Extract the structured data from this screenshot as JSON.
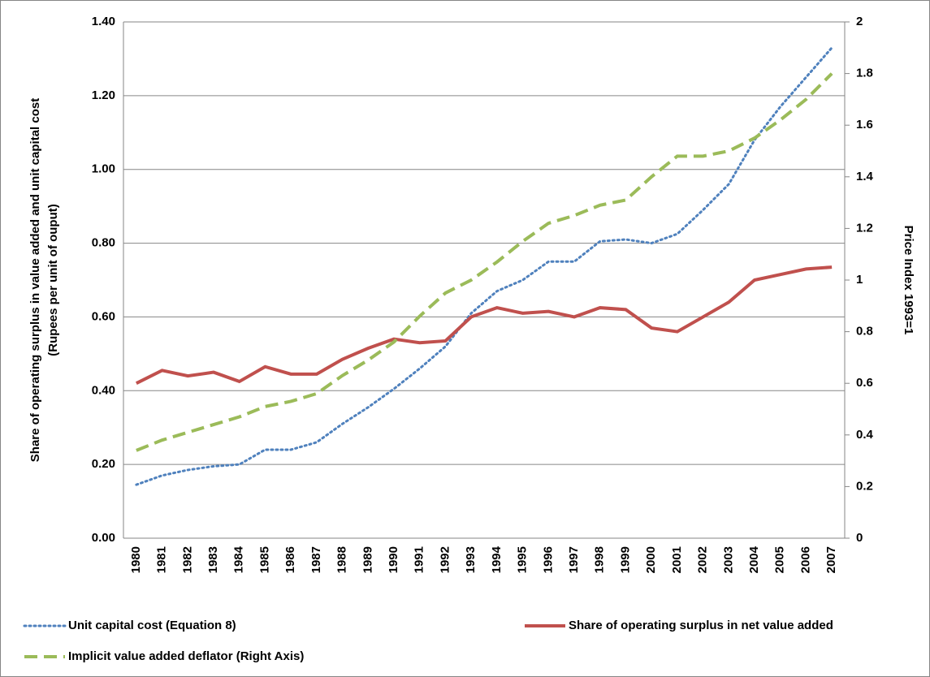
{
  "chart_data": {
    "type": "line",
    "y_label": "Share of operating surplus in value added and unit capital cost",
    "y_label2": "(Rupees per unit of ouput)",
    "y2_label": "Price Index 1993=1",
    "categories": [
      "1980",
      "1981",
      "1982",
      "1983",
      "1984",
      "1985",
      "1986",
      "1987",
      "1988",
      "1989",
      "1990",
      "1991",
      "1992",
      "1993",
      "1994",
      "1995",
      "1996",
      "1997",
      "1998",
      "1999",
      "2000",
      "2001",
      "2002",
      "2003",
      "2004",
      "2005",
      "2006",
      "2007"
    ],
    "ylim": [
      0,
      1.4
    ],
    "yticks": [
      {
        "value": 0,
        "label": "0.00"
      },
      {
        "value": 0.2,
        "label": "0.20"
      },
      {
        "value": 0.4,
        "label": "0.40"
      },
      {
        "value": 0.6,
        "label": "0.60"
      },
      {
        "value": 0.8,
        "label": "0.80"
      },
      {
        "value": 1,
        "label": "1.00"
      },
      {
        "value": 1.2,
        "label": "1.20"
      },
      {
        "value": 1.4,
        "label": "1.40"
      }
    ],
    "y2lim": [
      0,
      2
    ],
    "y2ticks": [
      0,
      0.2,
      0.4,
      0.6,
      0.8,
      1,
      1.2,
      1.4,
      1.6,
      1.8,
      2
    ],
    "grid": true,
    "series": [
      {
        "name": "Unit capital cost (Equation 8)",
        "color": "#4f81bd",
        "dash": "dotted",
        "values": [
          0.145,
          0.17,
          0.185,
          0.195,
          0.2,
          0.24,
          0.24,
          0.26,
          0.31,
          0.355,
          0.405,
          0.46,
          0.52,
          0.61,
          0.67,
          0.7,
          0.75,
          0.75,
          0.805,
          0.81,
          0.8,
          0.825,
          0.89,
          0.96,
          1.08,
          1.17,
          1.25,
          1.33
        ]
      },
      {
        "name": "Share of operating surplus in net value added",
        "color": "#c0504d",
        "dash": "solid",
        "values": [
          0.42,
          0.455,
          0.44,
          0.45,
          0.425,
          0.465,
          0.445,
          0.445,
          0.485,
          0.515,
          0.54,
          0.53,
          0.535,
          0.6,
          0.625,
          0.61,
          0.615,
          0.6,
          0.625,
          0.62,
          0.57,
          0.56,
          0.6,
          0.64,
          0.7,
          0.715,
          0.73,
          0.735
        ]
      },
      {
        "name": "Implicit value added deflator (Right Axis)",
        "color": "#9bbb59",
        "dash": "dashed",
        "axis": "y2",
        "values": [
          0.34,
          0.38,
          0.41,
          0.44,
          0.47,
          0.51,
          0.53,
          0.56,
          0.63,
          0.69,
          0.76,
          0.86,
          0.95,
          1.0,
          1.07,
          1.15,
          1.22,
          1.25,
          1.29,
          1.31,
          1.4,
          1.48,
          1.48,
          1.5,
          1.55,
          1.62,
          1.7,
          1.8
        ]
      }
    ]
  }
}
